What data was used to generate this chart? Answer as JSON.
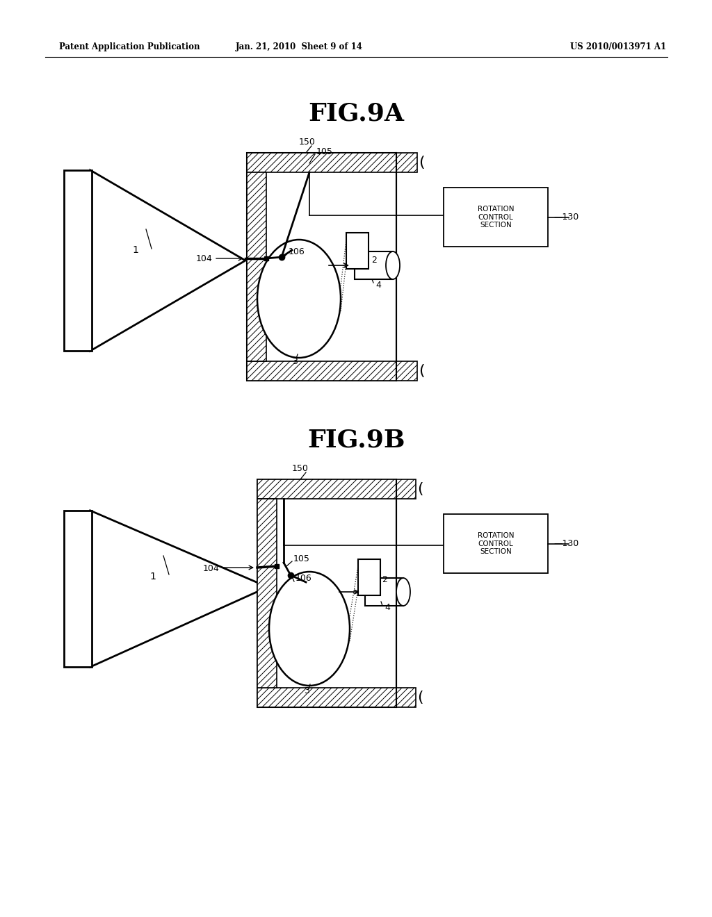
{
  "background_color": "#ffffff",
  "header_left": "Patent Application Publication",
  "header_center": "Jan. 21, 2010  Sheet 9 of 14",
  "header_right": "US 2010/0013971 A1",
  "fig9a_title": "FIG.9A",
  "fig9b_title": "FIG.9B",
  "rotation_control_text": "ROTATION\nCONTROL\nSECTION",
  "line_color": "#000000",
  "bg_color": "#ffffff"
}
